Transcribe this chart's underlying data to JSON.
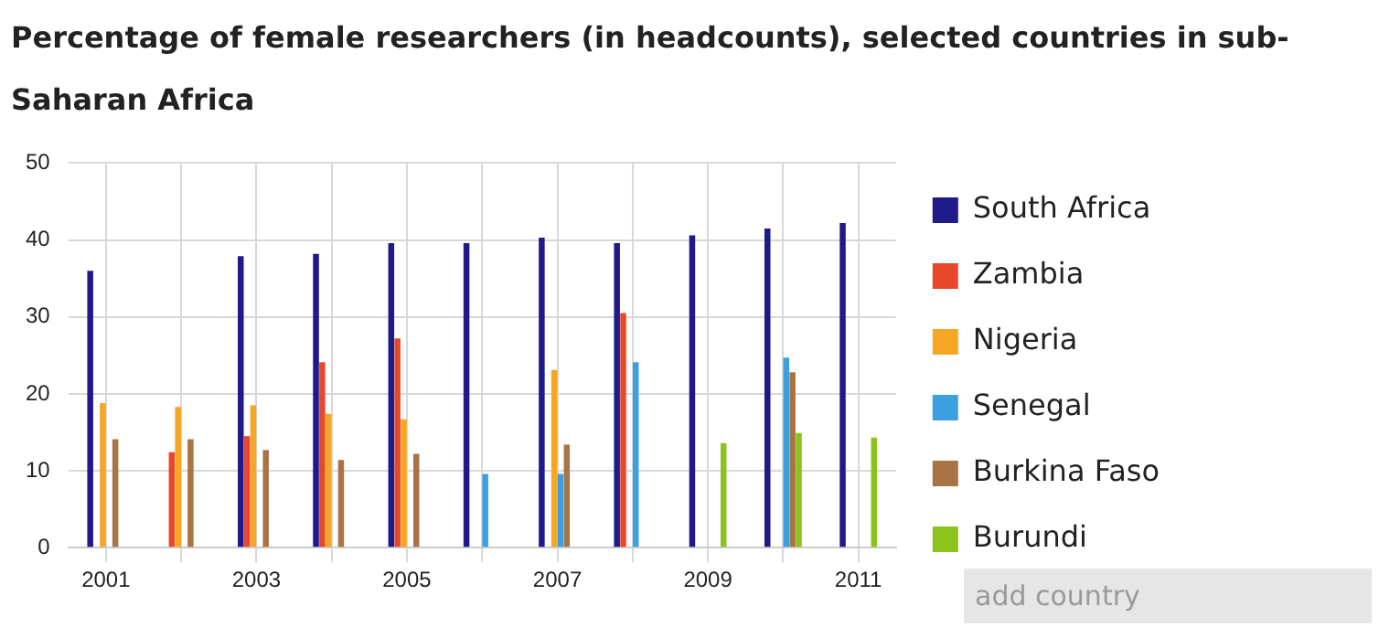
{
  "chart_data": {
    "type": "bar",
    "title": "Percentage of female researchers (in headcounts), selected countries in sub-Saharan Africa",
    "categories": [
      "2001",
      null,
      "2003",
      null,
      "2005",
      null,
      "2007",
      null,
      "2009",
      null,
      "2011"
    ],
    "series": [
      {
        "name": "South Africa",
        "color": "#1f1a8a",
        "values": [
          36.0,
          null,
          37.9,
          38.2,
          39.6,
          39.6,
          40.3,
          39.6,
          40.6,
          41.5,
          42.2
        ]
      },
      {
        "name": "Zambia",
        "color": "#e8472a",
        "values": [
          null,
          12.4,
          14.5,
          24.1,
          27.2,
          null,
          null,
          30.5,
          null,
          null,
          null
        ]
      },
      {
        "name": "Nigeria",
        "color": "#f5a623",
        "values": [
          18.8,
          18.3,
          18.5,
          17.4,
          16.7,
          null,
          23.1,
          null,
          null,
          null,
          null
        ]
      },
      {
        "name": "Senegal",
        "color": "#3ca0e0",
        "values": [
          null,
          null,
          null,
          null,
          null,
          9.6,
          9.6,
          24.1,
          null,
          24.7,
          null
        ]
      },
      {
        "name": "Burkina Faso",
        "color": "#a87444",
        "values": [
          14.1,
          14.1,
          12.7,
          11.4,
          12.2,
          null,
          13.4,
          null,
          null,
          22.8,
          null
        ]
      },
      {
        "name": "Burundi",
        "color": "#8cc21c",
        "values": [
          null,
          null,
          null,
          null,
          null,
          null,
          null,
          null,
          13.6,
          14.9,
          14.3
        ]
      }
    ],
    "ylim": [
      0,
      50
    ],
    "yticks": [
      0,
      10,
      20,
      30,
      40,
      50
    ],
    "grid": true,
    "legend": "right",
    "annotations": [
      "add country"
    ]
  }
}
